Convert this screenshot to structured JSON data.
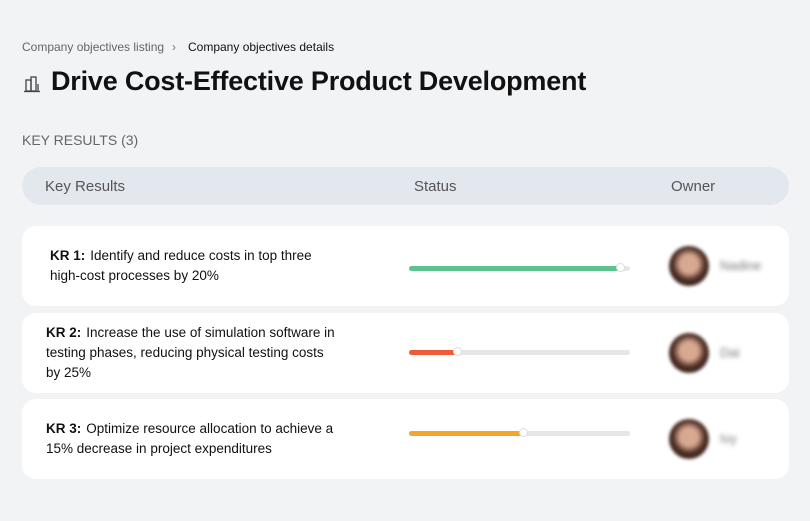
{
  "breadcrumb": {
    "items": [
      "Company objectives listing",
      "Company objectives details"
    ]
  },
  "title": "Drive Cost-Effective Product Development",
  "section_label": "KEY RESULTS (3)",
  "table": {
    "columns": [
      "Key Results",
      "Status",
      "Owner"
    ],
    "rows": [
      {
        "id": "KR 1:",
        "text": "Identify and reduce costs in top three high-cost processes by 20%",
        "progress": 96,
        "color": "#5cc38f",
        "owner": "Nadine"
      },
      {
        "id": "KR 2:",
        "text": "Increase the use of simulation software in testing phases, reducing physical testing costs by 25%",
        "progress": 22,
        "color": "#f05a38",
        "owner": "Dai"
      },
      {
        "id": "KR 3:",
        "text": "Optimize resource allocation to achieve a 15% decrease in project expenditures",
        "progress": 52,
        "color": "#f5a52a",
        "owner": "Ivy"
      }
    ]
  }
}
